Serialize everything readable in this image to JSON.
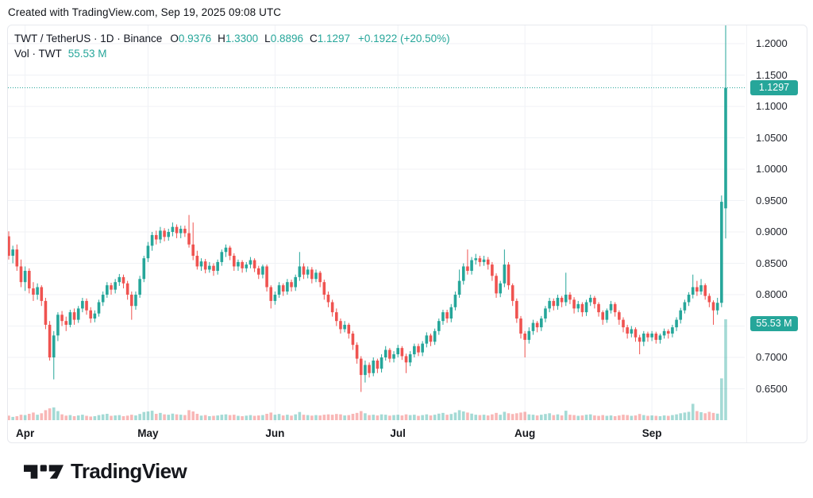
{
  "attribution": "Created with TradingView.com, Sep 19, 2025 09:08 UTC",
  "legend": {
    "title": "TWT / TetherUS · 1D · Binance",
    "ohlc": [
      {
        "label": "O",
        "value": "0.9376"
      },
      {
        "label": "H",
        "value": "1.3300"
      },
      {
        "label": "L",
        "value": "0.8896"
      },
      {
        "label": "C",
        "value": "1.1297"
      }
    ],
    "change": "+0.1922 (+20.50%)",
    "vol_label": "Vol · TWT",
    "vol_value": "55.53 M"
  },
  "price_badge": "1.1297",
  "volume_badge": "55.53 M",
  "footer": {
    "brand": "TradingView"
  },
  "colors": {
    "up": "#26a69a",
    "down": "#ef5350",
    "badge": "#26a69a",
    "grid": "#f0f2f6",
    "close_line": "#26a69a",
    "text_dark": "#131722"
  },
  "chart_data": {
    "type": "candlestick",
    "symbol": "TWT/TetherUS",
    "interval": "1D",
    "exchange": "Binance",
    "last": {
      "open": 0.9376,
      "high": 1.33,
      "low": 0.8896,
      "close": 1.1297,
      "change": 0.1922,
      "change_pct": 20.5,
      "volume_m": 55.53
    },
    "close_price": 1.1297,
    "ylim": [
      0.62,
      1.24
    ],
    "price_ticks": [
      1.2,
      1.15,
      1.1,
      1.05,
      1.0,
      0.95,
      0.9,
      0.85,
      0.8,
      0.75,
      0.7,
      0.65
    ],
    "month_ticks": [
      {
        "label": "Apr",
        "index": 4
      },
      {
        "label": "May",
        "index": 34
      },
      {
        "label": "Jun",
        "index": 65
      },
      {
        "label": "Jul",
        "index": 95
      },
      {
        "label": "Aug",
        "index": 126
      },
      {
        "label": "Sep",
        "index": 157
      }
    ],
    "ohlc": [
      [
        0.893,
        0.901,
        0.856,
        0.862
      ],
      [
        0.862,
        0.878,
        0.85,
        0.872
      ],
      [
        0.872,
        0.88,
        0.838,
        0.845
      ],
      [
        0.845,
        0.856,
        0.812,
        0.82
      ],
      [
        0.82,
        0.845,
        0.806,
        0.838
      ],
      [
        0.838,
        0.842,
        0.802,
        0.81
      ],
      [
        0.81,
        0.82,
        0.79,
        0.8
      ],
      [
        0.8,
        0.818,
        0.792,
        0.812
      ],
      [
        0.812,
        0.815,
        0.782,
        0.79
      ],
      [
        0.79,
        0.795,
        0.745,
        0.752
      ],
      [
        0.752,
        0.758,
        0.695,
        0.7
      ],
      [
        0.7,
        0.742,
        0.665,
        0.735
      ],
      [
        0.735,
        0.772,
        0.726,
        0.768
      ],
      [
        0.768,
        0.774,
        0.75,
        0.758
      ],
      [
        0.758,
        0.765,
        0.742,
        0.752
      ],
      [
        0.752,
        0.776,
        0.748,
        0.772
      ],
      [
        0.772,
        0.778,
        0.752,
        0.76
      ],
      [
        0.76,
        0.782,
        0.755,
        0.778
      ],
      [
        0.778,
        0.795,
        0.772,
        0.79
      ],
      [
        0.79,
        0.794,
        0.768,
        0.775
      ],
      [
        0.775,
        0.78,
        0.755,
        0.762
      ],
      [
        0.762,
        0.775,
        0.756,
        0.77
      ],
      [
        0.77,
        0.792,
        0.765,
        0.788
      ],
      [
        0.788,
        0.805,
        0.782,
        0.8
      ],
      [
        0.8,
        0.82,
        0.795,
        0.815
      ],
      [
        0.815,
        0.819,
        0.8,
        0.808
      ],
      [
        0.808,
        0.825,
        0.802,
        0.82
      ],
      [
        0.82,
        0.833,
        0.814,
        0.828
      ],
      [
        0.828,
        0.832,
        0.81,
        0.818
      ],
      [
        0.818,
        0.822,
        0.792,
        0.8
      ],
      [
        0.8,
        0.805,
        0.76,
        0.782
      ],
      [
        0.782,
        0.805,
        0.776,
        0.8
      ],
      [
        0.8,
        0.83,
        0.795,
        0.825
      ],
      [
        0.825,
        0.862,
        0.82,
        0.858
      ],
      [
        0.858,
        0.884,
        0.852,
        0.878
      ],
      [
        0.878,
        0.9,
        0.87,
        0.895
      ],
      [
        0.895,
        0.902,
        0.88,
        0.888
      ],
      [
        0.888,
        0.908,
        0.882,
        0.902
      ],
      [
        0.902,
        0.906,
        0.885,
        0.892
      ],
      [
        0.892,
        0.905,
        0.886,
        0.9
      ],
      [
        0.9,
        0.915,
        0.893,
        0.908
      ],
      [
        0.908,
        0.912,
        0.89,
        0.898
      ],
      [
        0.898,
        0.91,
        0.89,
        0.905
      ],
      [
        0.905,
        0.91,
        0.892,
        0.898
      ],
      [
        0.898,
        0.927,
        0.875,
        0.88
      ],
      [
        0.88,
        0.915,
        0.855,
        0.862
      ],
      [
        0.862,
        0.87,
        0.84,
        0.845
      ],
      [
        0.845,
        0.858,
        0.838,
        0.853
      ],
      [
        0.853,
        0.857,
        0.834,
        0.84
      ],
      [
        0.84,
        0.852,
        0.835,
        0.846
      ],
      [
        0.846,
        0.85,
        0.83,
        0.838
      ],
      [
        0.838,
        0.856,
        0.832,
        0.852
      ],
      [
        0.852,
        0.872,
        0.846,
        0.868
      ],
      [
        0.868,
        0.88,
        0.86,
        0.875
      ],
      [
        0.875,
        0.878,
        0.855,
        0.862
      ],
      [
        0.862,
        0.866,
        0.838,
        0.845
      ],
      [
        0.845,
        0.856,
        0.838,
        0.852
      ],
      [
        0.852,
        0.855,
        0.835,
        0.842
      ],
      [
        0.842,
        0.852,
        0.836,
        0.848
      ],
      [
        0.848,
        0.86,
        0.842,
        0.855
      ],
      [
        0.855,
        0.858,
        0.836,
        0.842
      ],
      [
        0.842,
        0.846,
        0.825,
        0.832
      ],
      [
        0.832,
        0.848,
        0.826,
        0.845
      ],
      [
        0.845,
        0.848,
        0.805,
        0.812
      ],
      [
        0.812,
        0.815,
        0.778,
        0.79
      ],
      [
        0.79,
        0.805,
        0.784,
        0.8
      ],
      [
        0.8,
        0.82,
        0.795,
        0.815
      ],
      [
        0.815,
        0.818,
        0.798,
        0.805
      ],
      [
        0.805,
        0.825,
        0.8,
        0.82
      ],
      [
        0.82,
        0.824,
        0.805,
        0.812
      ],
      [
        0.812,
        0.832,
        0.806,
        0.828
      ],
      [
        0.828,
        0.868,
        0.822,
        0.845
      ],
      [
        0.845,
        0.85,
        0.825,
        0.832
      ],
      [
        0.832,
        0.845,
        0.826,
        0.84
      ],
      [
        0.84,
        0.844,
        0.818,
        0.825
      ],
      [
        0.825,
        0.84,
        0.82,
        0.835
      ],
      [
        0.835,
        0.838,
        0.812,
        0.82
      ],
      [
        0.82,
        0.824,
        0.792,
        0.8
      ],
      [
        0.8,
        0.805,
        0.78,
        0.788
      ],
      [
        0.788,
        0.792,
        0.765,
        0.772
      ],
      [
        0.772,
        0.778,
        0.75,
        0.758
      ],
      [
        0.758,
        0.762,
        0.738,
        0.745
      ],
      [
        0.745,
        0.758,
        0.74,
        0.752
      ],
      [
        0.752,
        0.755,
        0.73,
        0.738
      ],
      [
        0.738,
        0.742,
        0.712,
        0.72
      ],
      [
        0.72,
        0.724,
        0.69,
        0.698
      ],
      [
        0.698,
        0.702,
        0.645,
        0.672
      ],
      [
        0.672,
        0.695,
        0.66,
        0.688
      ],
      [
        0.688,
        0.692,
        0.668,
        0.675
      ],
      [
        0.675,
        0.7,
        0.67,
        0.695
      ],
      [
        0.695,
        0.698,
        0.675,
        0.682
      ],
      [
        0.682,
        0.705,
        0.676,
        0.7
      ],
      [
        0.7,
        0.718,
        0.695,
        0.712
      ],
      [
        0.712,
        0.715,
        0.692,
        0.698
      ],
      [
        0.698,
        0.71,
        0.692,
        0.705
      ],
      [
        0.705,
        0.72,
        0.7,
        0.715
      ],
      [
        0.715,
        0.718,
        0.696,
        0.702
      ],
      [
        0.702,
        0.706,
        0.675,
        0.692
      ],
      [
        0.692,
        0.71,
        0.686,
        0.705
      ],
      [
        0.705,
        0.722,
        0.7,
        0.718
      ],
      [
        0.718,
        0.722,
        0.702,
        0.708
      ],
      [
        0.708,
        0.726,
        0.702,
        0.722
      ],
      [
        0.722,
        0.74,
        0.716,
        0.735
      ],
      [
        0.735,
        0.738,
        0.718,
        0.725
      ],
      [
        0.725,
        0.746,
        0.72,
        0.742
      ],
      [
        0.742,
        0.762,
        0.736,
        0.758
      ],
      [
        0.758,
        0.776,
        0.752,
        0.772
      ],
      [
        0.772,
        0.776,
        0.755,
        0.762
      ],
      [
        0.762,
        0.785,
        0.756,
        0.78
      ],
      [
        0.78,
        0.805,
        0.775,
        0.8
      ],
      [
        0.8,
        0.84,
        0.795,
        0.822
      ],
      [
        0.822,
        0.85,
        0.816,
        0.845
      ],
      [
        0.845,
        0.872,
        0.832,
        0.838
      ],
      [
        0.838,
        0.86,
        0.832,
        0.855
      ],
      [
        0.855,
        0.865,
        0.848,
        0.858
      ],
      [
        0.858,
        0.862,
        0.845,
        0.852
      ],
      [
        0.852,
        0.862,
        0.846,
        0.856
      ],
      [
        0.856,
        0.86,
        0.84,
        0.848
      ],
      [
        0.848,
        0.852,
        0.822,
        0.83
      ],
      [
        0.83,
        0.834,
        0.795,
        0.802
      ],
      [
        0.802,
        0.822,
        0.796,
        0.818
      ],
      [
        0.818,
        0.872,
        0.812,
        0.848
      ],
      [
        0.848,
        0.852,
        0.808,
        0.815
      ],
      [
        0.815,
        0.818,
        0.782,
        0.79
      ],
      [
        0.79,
        0.794,
        0.755,
        0.762
      ],
      [
        0.762,
        0.766,
        0.73,
        0.738
      ],
      [
        0.738,
        0.742,
        0.7,
        0.728
      ],
      [
        0.728,
        0.748,
        0.722,
        0.742
      ],
      [
        0.742,
        0.76,
        0.736,
        0.755
      ],
      [
        0.755,
        0.758,
        0.74,
        0.748
      ],
      [
        0.748,
        0.766,
        0.742,
        0.762
      ],
      [
        0.762,
        0.782,
        0.756,
        0.778
      ],
      [
        0.778,
        0.795,
        0.772,
        0.79
      ],
      [
        0.79,
        0.794,
        0.775,
        0.782
      ],
      [
        0.782,
        0.8,
        0.776,
        0.795
      ],
      [
        0.795,
        0.798,
        0.78,
        0.788
      ],
      [
        0.788,
        0.835,
        0.782,
        0.8
      ],
      [
        0.8,
        0.804,
        0.785,
        0.792
      ],
      [
        0.792,
        0.796,
        0.77,
        0.778
      ],
      [
        0.778,
        0.79,
        0.772,
        0.785
      ],
      [
        0.785,
        0.788,
        0.765,
        0.772
      ],
      [
        0.772,
        0.792,
        0.766,
        0.788
      ],
      [
        0.788,
        0.8,
        0.782,
        0.795
      ],
      [
        0.795,
        0.798,
        0.778,
        0.785
      ],
      [
        0.785,
        0.788,
        0.765,
        0.772
      ],
      [
        0.772,
        0.775,
        0.752,
        0.76
      ],
      [
        0.76,
        0.778,
        0.755,
        0.775
      ],
      [
        0.775,
        0.79,
        0.77,
        0.785
      ],
      [
        0.785,
        0.788,
        0.765,
        0.772
      ],
      [
        0.772,
        0.775,
        0.752,
        0.76
      ],
      [
        0.76,
        0.764,
        0.74,
        0.748
      ],
      [
        0.748,
        0.752,
        0.73,
        0.738
      ],
      [
        0.738,
        0.75,
        0.732,
        0.745
      ],
      [
        0.745,
        0.748,
        0.725,
        0.732
      ],
      [
        0.732,
        0.736,
        0.705,
        0.725
      ],
      [
        0.725,
        0.742,
        0.718,
        0.738
      ],
      [
        0.738,
        0.741,
        0.725,
        0.732
      ],
      [
        0.732,
        0.742,
        0.726,
        0.738
      ],
      [
        0.738,
        0.741,
        0.722,
        0.728
      ],
      [
        0.728,
        0.738,
        0.722,
        0.735
      ],
      [
        0.735,
        0.746,
        0.73,
        0.742
      ],
      [
        0.742,
        0.745,
        0.73,
        0.738
      ],
      [
        0.738,
        0.752,
        0.732,
        0.748
      ],
      [
        0.748,
        0.764,
        0.742,
        0.76
      ],
      [
        0.76,
        0.779,
        0.754,
        0.775
      ],
      [
        0.775,
        0.792,
        0.77,
        0.788
      ],
      [
        0.788,
        0.804,
        0.782,
        0.8
      ],
      [
        0.8,
        0.832,
        0.794,
        0.812
      ],
      [
        0.812,
        0.822,
        0.798,
        0.805
      ],
      [
        0.805,
        0.825,
        0.8,
        0.815
      ],
      [
        0.815,
        0.818,
        0.792,
        0.798
      ],
      [
        0.798,
        0.802,
        0.78,
        0.788
      ],
      [
        0.788,
        0.791,
        0.752,
        0.775
      ],
      [
        0.775,
        0.795,
        0.768,
        0.787
      ],
      [
        0.787,
        0.958,
        0.78,
        0.948
      ],
      [
        0.9376,
        1.33,
        0.8896,
        1.1297
      ]
    ],
    "volumes_m": [
      2.5,
      1.8,
      2.2,
      3.0,
      2.8,
      3.5,
      4.2,
      3.0,
      3.8,
      5.5,
      6.5,
      7.0,
      5.0,
      3.2,
      2.5,
      2.8,
      2.2,
      2.6,
      3.0,
      2.4,
      2.0,
      2.2,
      2.8,
      3.2,
      3.5,
      2.4,
      2.6,
      2.8,
      2.2,
      2.5,
      3.0,
      2.6,
      3.4,
      4.5,
      4.8,
      5.2,
      3.5,
      4.0,
      3.2,
      3.0,
      3.6,
      3.2,
      3.0,
      2.8,
      5.5,
      4.8,
      3.5,
      2.5,
      2.8,
      2.2,
      2.4,
      2.6,
      3.0,
      3.2,
      2.8,
      3.0,
      2.4,
      2.2,
      2.5,
      2.8,
      2.4,
      2.6,
      2.8,
      3.5,
      4.2,
      3.0,
      3.4,
      2.6,
      3.0,
      2.5,
      3.2,
      4.5,
      3.0,
      2.8,
      2.5,
      2.8,
      2.6,
      3.0,
      3.2,
      3.0,
      3.4,
      3.2,
      2.6,
      2.8,
      3.5,
      4.0,
      5.0,
      3.8,
      2.8,
      3.0,
      2.6,
      3.2,
      3.0,
      2.5,
      2.8,
      3.0,
      2.6,
      3.2,
      2.8,
      3.0,
      2.4,
      2.8,
      3.2,
      2.6,
      3.0,
      3.6,
      4.0,
      3.0,
      3.4,
      4.2,
      5.5,
      4.8,
      4.2,
      3.6,
      3.0,
      2.8,
      3.0,
      2.6,
      3.2,
      4.0,
      3.0,
      4.6,
      3.8,
      3.4,
      3.8,
      4.2,
      4.6,
      3.2,
      3.0,
      2.6,
      3.0,
      3.4,
      3.8,
      2.8,
      3.2,
      2.6,
      5.2,
      3.0,
      2.8,
      2.4,
      2.6,
      3.0,
      3.2,
      2.6,
      2.4,
      2.8,
      2.4,
      2.6,
      2.2,
      2.6,
      3.0,
      2.8,
      2.4,
      2.6,
      3.4,
      2.8,
      2.4,
      2.6,
      2.4,
      2.2,
      2.6,
      2.4,
      2.8,
      3.2,
      3.8,
      4.2,
      4.6,
      9.0,
      5.0,
      4.4,
      3.8,
      4.6,
      4.0,
      3.6,
      23.0,
      55.53
    ]
  }
}
